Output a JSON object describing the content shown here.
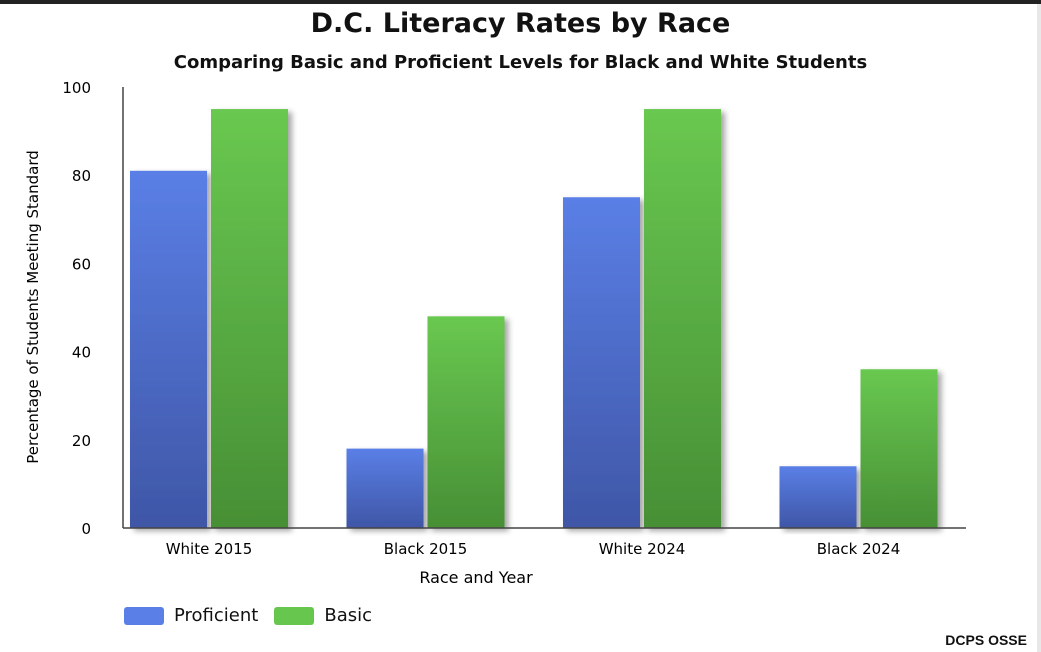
{
  "chart_data": {
    "type": "bar",
    "title": "D.C. Literacy Rates by Race",
    "subtitle": "Comparing Basic and Proficient Levels for Black and White Students",
    "xlabel": "Race and Year",
    "ylabel": "Percentage of Students Meeting Standard",
    "categories": [
      "White 2015",
      "Black 2015",
      "White 2024",
      "Black 2024"
    ],
    "series": [
      {
        "name": "Proficient",
        "values": [
          81,
          18,
          75,
          14
        ],
        "color": "#5a7fe6"
      },
      {
        "name": "Basic",
        "values": [
          95,
          48,
          95,
          36
        ],
        "color": "#66c64e"
      }
    ],
    "ylim": [
      0,
      100
    ],
    "yticks": [
      0,
      20,
      40,
      60,
      80,
      100
    ],
    "grid": false,
    "legend": "bottom-left",
    "source": "DCPS OSSE"
  }
}
